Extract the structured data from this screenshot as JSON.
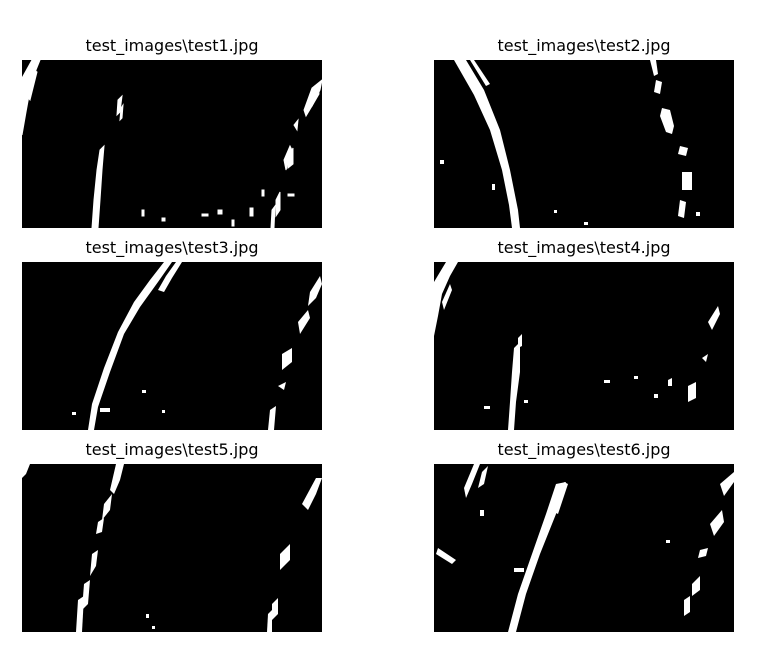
{
  "figure": {
    "panels": [
      {
        "title": "test_images\\test1.jpg"
      },
      {
        "title": "test_images\\test2.jpg"
      },
      {
        "title": "test_images\\test3.jpg"
      },
      {
        "title": "test_images\\test4.jpg"
      },
      {
        "title": "test_images\\test5.jpg"
      },
      {
        "title": "test_images\\test6.jpg"
      }
    ],
    "colors": {
      "background": "#ffffff",
      "image_background": "#000000",
      "lane_pixels": "#ffffff"
    }
  }
}
